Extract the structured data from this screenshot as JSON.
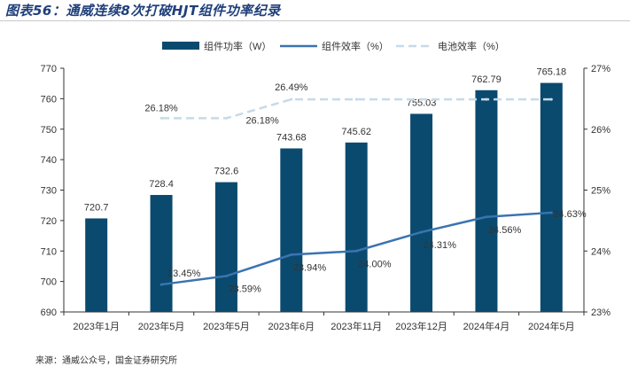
{
  "title": "图表56：通威连续8次打破HJT组件功率纪录",
  "source": "来源：通威公众号，国金证券研究所",
  "colors": {
    "bar": "#0b4a6f",
    "module_line": "#3a74b0",
    "cell_line": "#c6daea",
    "axis": "#333333"
  },
  "chart_data": {
    "type": "bar",
    "categories": [
      "2023年1月",
      "2023年5月",
      "2023年5月",
      "2023年6月",
      "2023年11月",
      "2023年12月",
      "2024年4月",
      "2024年5月"
    ],
    "ylim": [
      690,
      770
    ],
    "y_ticks": [
      690,
      700,
      710,
      720,
      730,
      740,
      750,
      760,
      770
    ],
    "y2lim": [
      23,
      27
    ],
    "y2_ticks": [
      "23%",
      "24%",
      "25%",
      "26%",
      "27%"
    ],
    "legend_position": "top",
    "series": [
      {
        "name": "组件功率（W）",
        "type": "bar",
        "axis": "left",
        "values": [
          720.7,
          728.4,
          732.6,
          743.68,
          745.62,
          755.03,
          762.79,
          765.18
        ],
        "labels": [
          "720.7",
          "728.4",
          "732.6",
          "743.68",
          "745.62",
          "755.03",
          "762.79",
          "765.18"
        ]
      },
      {
        "name": "组件效率（%）",
        "type": "line",
        "axis": "right",
        "values": [
          null,
          23.45,
          23.59,
          23.94,
          24.0,
          24.31,
          24.56,
          24.63
        ],
        "labels": [
          null,
          "23.45%",
          "23.59%",
          "23.94%",
          "24.00%",
          "24.31%",
          "24.56%",
          "24.63%"
        ]
      },
      {
        "name": "电池效率（%）",
        "type": "line",
        "axis": "right",
        "dashed": true,
        "values": [
          null,
          26.18,
          26.18,
          26.49,
          26.49,
          26.49,
          26.49,
          26.49
        ],
        "labels": [
          null,
          "26.18%",
          "26.18%",
          "26.49%",
          null,
          null,
          null,
          null
        ]
      }
    ]
  }
}
